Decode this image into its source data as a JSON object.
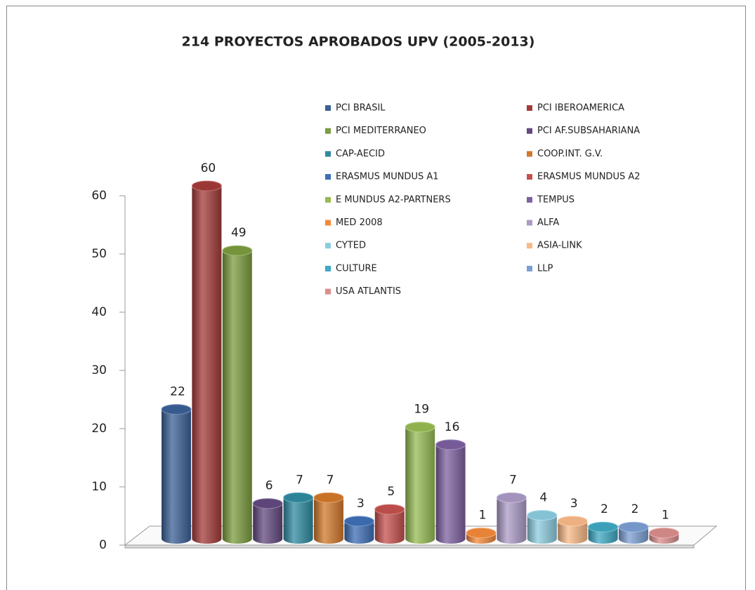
{
  "chart_data": {
    "type": "bar",
    "title": "214 PROYECTOS APROBADOS UPV (2005-2013)",
    "categories": [
      "PCI BRASIL",
      "PCI IBEROAMERICA",
      "PCI MEDITERRANEO",
      "PCI AF.SUBSAHARIANA",
      "CAP-AECID",
      "COOP.INT. G.V.",
      "ERASMUS MUNDUS A1",
      "ERASMUS MUNDUS A2",
      "E MUNDUS A2-PARTNERS",
      "TEMPUS",
      "MED 2008",
      "ALFA",
      "CYTED",
      "ASIA-LINK",
      "CULTURE",
      "LLP",
      "USA ATLANTIS"
    ],
    "values": [
      22,
      60,
      49,
      6,
      7,
      7,
      3,
      5,
      19,
      16,
      1,
      7,
      4,
      3,
      2,
      2,
      1
    ],
    "colors": [
      "#3b6097",
      "#a33b39",
      "#7b9c3e",
      "#62487f",
      "#2f8ba0",
      "#d2782a",
      "#3e6eb6",
      "#c4504d",
      "#96bb52",
      "#7d60a0",
      "#f38a3a",
      "#ac9bc6",
      "#8cccdf",
      "#f9b987",
      "#3fa8c3",
      "#7b9ed3",
      "#da8e8c"
    ],
    "ylim": [
      0,
      60
    ],
    "yticks": [
      0,
      10,
      20,
      30,
      40,
      50,
      60
    ]
  }
}
